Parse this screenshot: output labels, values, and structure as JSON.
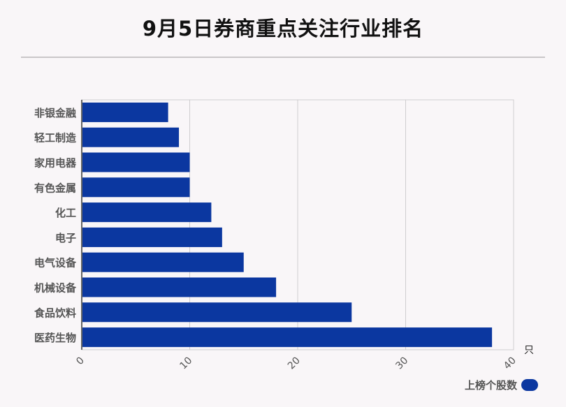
{
  "title": "9月5日券商重点关注行业排名",
  "legend": {
    "label": "上榜个股数"
  },
  "chart_data": {
    "type": "bar",
    "orientation": "horizontal",
    "title": "9月5日券商重点关注行业排名",
    "categories": [
      "非银金融",
      "轻工制造",
      "家用电器",
      "有色金属",
      "化工",
      "电子",
      "电气设备",
      "机械设备",
      "食品饮料",
      "医药生物"
    ],
    "series": [
      {
        "name": "上榜个股数",
        "values": [
          8,
          9,
          10,
          10,
          12,
          13,
          15,
          18,
          25,
          38
        ],
        "color": "#0b37a0"
      }
    ],
    "xlim": [
      0,
      40
    ],
    "xticks": [
      "0",
      "10",
      "20",
      "30",
      "40"
    ],
    "xunit": "只",
    "grid": true,
    "legend_position": "bottom-right"
  }
}
